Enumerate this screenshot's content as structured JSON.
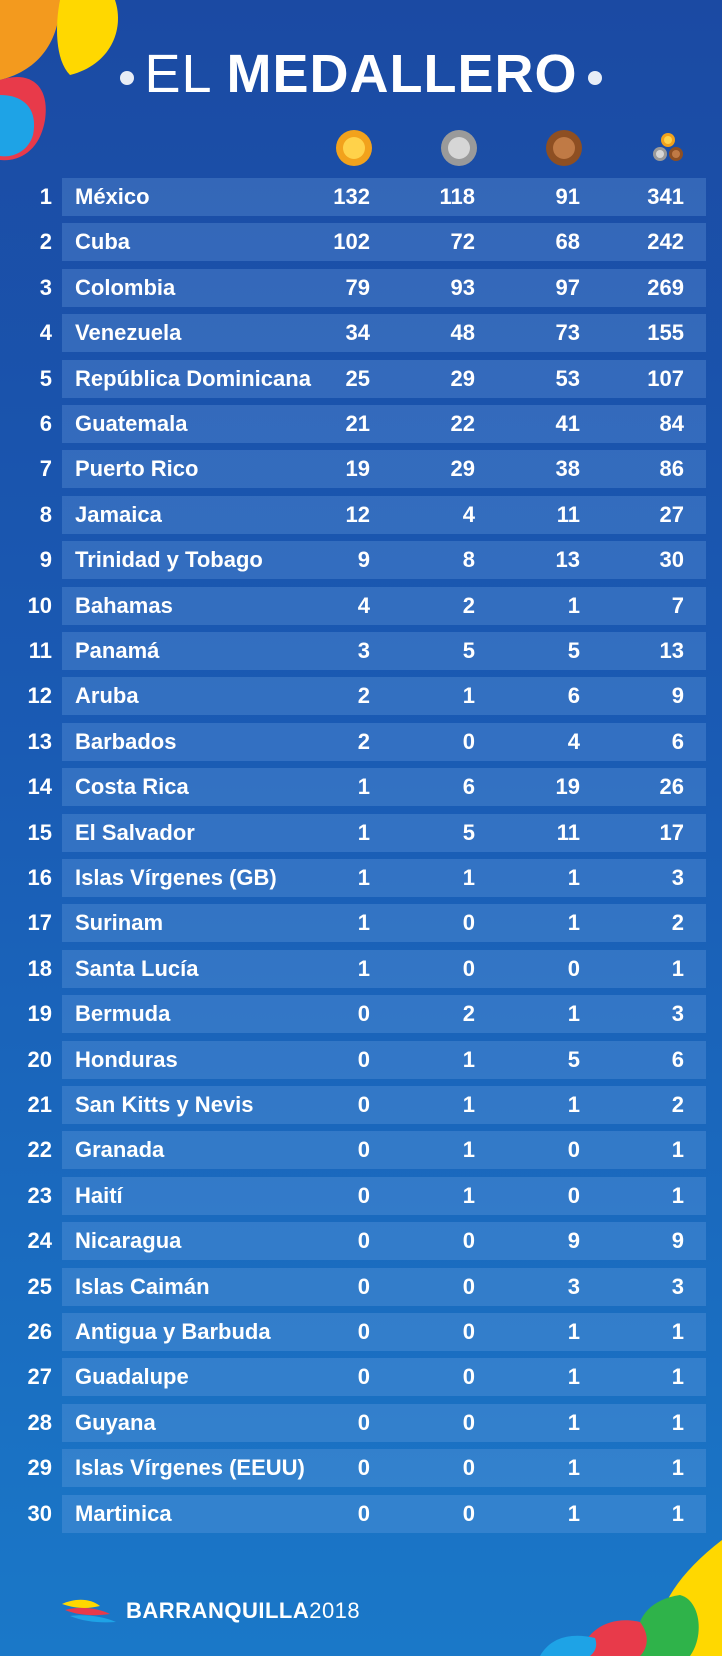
{
  "header": {
    "title_light": "EL",
    "title_bold": "MEDALLERO",
    "columns": [
      {
        "icon": "gold-medal-icon",
        "color": "#f2a21c"
      },
      {
        "icon": "silver-medal-icon",
        "color": "#a8a8a8"
      },
      {
        "icon": "bronze-medal-icon",
        "color": "#b06a35"
      },
      {
        "icon": "total-medals-icon",
        "color": "#c9c9c9"
      }
    ]
  },
  "rows": [
    {
      "rank": "1",
      "country": "México",
      "gold": "132",
      "silver": "118",
      "bronze": "91",
      "total": "341"
    },
    {
      "rank": "2",
      "country": "Cuba",
      "gold": "102",
      "silver": "72",
      "bronze": "68",
      "total": "242"
    },
    {
      "rank": "3",
      "country": "Colombia",
      "gold": "79",
      "silver": "93",
      "bronze": "97",
      "total": "269"
    },
    {
      "rank": "4",
      "country": "Venezuela",
      "gold": "34",
      "silver": "48",
      "bronze": "73",
      "total": "155"
    },
    {
      "rank": "5",
      "country": "República Dominicana",
      "gold": "25",
      "silver": "29",
      "bronze": "53",
      "total": "107"
    },
    {
      "rank": "6",
      "country": "Guatemala",
      "gold": "21",
      "silver": "22",
      "bronze": "41",
      "total": "84"
    },
    {
      "rank": "7",
      "country": "Puerto Rico",
      "gold": "19",
      "silver": "29",
      "bronze": "38",
      "total": "86"
    },
    {
      "rank": "8",
      "country": "Jamaica",
      "gold": "12",
      "silver": "4",
      "bronze": "11",
      "total": "27"
    },
    {
      "rank": "9",
      "country": "Trinidad y Tobago",
      "gold": "9",
      "silver": "8",
      "bronze": "13",
      "total": "30"
    },
    {
      "rank": "10",
      "country": "Bahamas",
      "gold": "4",
      "silver": "2",
      "bronze": "1",
      "total": "7"
    },
    {
      "rank": "11",
      "country": "Panamá",
      "gold": "3",
      "silver": "5",
      "bronze": "5",
      "total": "13"
    },
    {
      "rank": "12",
      "country": "Aruba",
      "gold": "2",
      "silver": "1",
      "bronze": "6",
      "total": "9"
    },
    {
      "rank": "13",
      "country": "Barbados",
      "gold": "2",
      "silver": "0",
      "bronze": "4",
      "total": "6"
    },
    {
      "rank": "14",
      "country": "Costa Rica",
      "gold": "1",
      "silver": "6",
      "bronze": "19",
      "total": "26"
    },
    {
      "rank": "15",
      "country": "El Salvador",
      "gold": "1",
      "silver": "5",
      "bronze": "11",
      "total": "17"
    },
    {
      "rank": "16",
      "country": "Islas Vírgenes (GB)",
      "gold": "1",
      "silver": "1",
      "bronze": "1",
      "total": "3"
    },
    {
      "rank": "17",
      "country": "Surinam",
      "gold": "1",
      "silver": "0",
      "bronze": "1",
      "total": "2"
    },
    {
      "rank": "18",
      "country": "Santa Lucía",
      "gold": "1",
      "silver": "0",
      "bronze": "0",
      "total": "1"
    },
    {
      "rank": "19",
      "country": "Bermuda",
      "gold": "0",
      "silver": "2",
      "bronze": "1",
      "total": "3"
    },
    {
      "rank": "20",
      "country": "Honduras",
      "gold": "0",
      "silver": "1",
      "bronze": "5",
      "total": "6"
    },
    {
      "rank": "21",
      "country": "San Kitts y Nevis",
      "gold": "0",
      "silver": "1",
      "bronze": "1",
      "total": "2"
    },
    {
      "rank": "22",
      "country": "Granada",
      "gold": "0",
      "silver": "1",
      "bronze": "0",
      "total": "1"
    },
    {
      "rank": "23",
      "country": "Haití",
      "gold": "0",
      "silver": "1",
      "bronze": "0",
      "total": "1"
    },
    {
      "rank": "24",
      "country": "Nicaragua",
      "gold": "0",
      "silver": "0",
      "bronze": "9",
      "total": "9"
    },
    {
      "rank": "25",
      "country": "Islas Caimán",
      "gold": "0",
      "silver": "0",
      "bronze": "3",
      "total": "3"
    },
    {
      "rank": "26",
      "country": "Antigua y Barbuda",
      "gold": "0",
      "silver": "0",
      "bronze": "1",
      "total": "1"
    },
    {
      "rank": "27",
      "country": "Guadalupe",
      "gold": "0",
      "silver": "0",
      "bronze": "1",
      "total": "1"
    },
    {
      "rank": "28",
      "country": "Guyana",
      "gold": "0",
      "silver": "0",
      "bronze": "1",
      "total": "1"
    },
    {
      "rank": "29",
      "country": "Islas Vírgenes (EEUU)",
      "gold": "0",
      "silver": "0",
      "bronze": "1",
      "total": "1"
    },
    {
      "rank": "30",
      "country": "Martinica",
      "gold": "0",
      "silver": "0",
      "bronze": "1",
      "total": "1"
    }
  ],
  "footer": {
    "logo_word": "BARRANQUILLA",
    "logo_year": "2018"
  }
}
